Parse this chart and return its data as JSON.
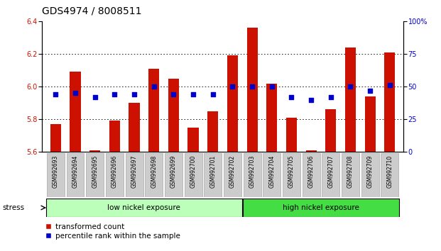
{
  "title": "GDS4974 / 8008511",
  "samples": [
    "GSM992693",
    "GSM992694",
    "GSM992695",
    "GSM992696",
    "GSM992697",
    "GSM992698",
    "GSM992699",
    "GSM992700",
    "GSM992701",
    "GSM992702",
    "GSM992703",
    "GSM992704",
    "GSM992705",
    "GSM992706",
    "GSM992707",
    "GSM992708",
    "GSM992709",
    "GSM992710"
  ],
  "transformed_count": [
    5.77,
    6.09,
    5.61,
    5.79,
    5.9,
    6.11,
    6.05,
    5.75,
    5.85,
    6.19,
    6.36,
    6.02,
    5.81,
    5.61,
    5.86,
    6.24,
    5.94,
    6.21
  ],
  "percentile_rank": [
    44,
    45,
    42,
    44,
    44,
    50,
    44,
    44,
    44,
    50,
    50,
    50,
    42,
    40,
    42,
    50,
    47,
    51
  ],
  "ylim_left": [
    5.6,
    6.4
  ],
  "ylim_right": [
    0,
    100
  ],
  "yticks_left": [
    5.6,
    5.8,
    6.0,
    6.2,
    6.4
  ],
  "yticks_right": [
    0,
    25,
    50,
    75,
    100
  ],
  "bar_color": "#cc1100",
  "dot_color": "#0000cc",
  "bar_bottom": 5.6,
  "groups": [
    {
      "label": "low nickel exposure",
      "start": 0,
      "end": 9,
      "color": "#bbffbb"
    },
    {
      "label": "high nickel exposure",
      "start": 10,
      "end": 17,
      "color": "#44dd44"
    }
  ],
  "stress_label": "stress",
  "legend_bar_label": "transformed count",
  "legend_dot_label": "percentile rank within the sample",
  "tick_fontsize": 7,
  "label_fontsize": 7.5,
  "title_fontsize": 10
}
